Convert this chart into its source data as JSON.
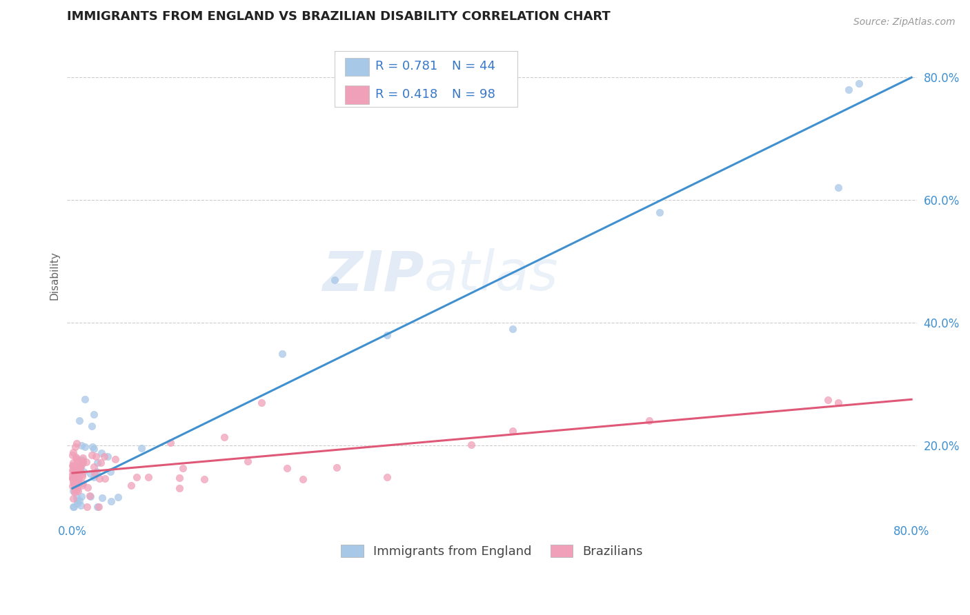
{
  "title": "IMMIGRANTS FROM ENGLAND VS BRAZILIAN DISABILITY CORRELATION CHART",
  "source": "Source: ZipAtlas.com",
  "ylabel": "Disability",
  "watermark_zip": "ZIP",
  "watermark_atlas": "atlas",
  "legend_blue_R": "R = 0.781",
  "legend_blue_N": "N = 44",
  "legend_pink_R": "R = 0.418",
  "legend_pink_N": "N = 98",
  "legend_labels": [
    "Immigrants from England",
    "Brazilians"
  ],
  "blue_scatter_color": "#a8c8e8",
  "pink_scatter_color": "#f0a0b8",
  "blue_line_color": "#4090d0",
  "pink_line_color": "#e05878",
  "title_color": "#222222",
  "legend_text_color": "#3878c8",
  "axis_tick_color": "#4090d0",
  "grid_color": "#cccccc",
  "background_color": "#ffffff",
  "xlim": [
    -0.005,
    0.805
  ],
  "ylim": [
    0.08,
    0.875
  ],
  "ytick_vals": [
    0.2,
    0.4,
    0.6,
    0.8
  ],
  "ytick_labels": [
    "20.0%",
    "40.0%",
    "60.0%",
    "80.0%"
  ],
  "blue_line_x": [
    0.0,
    0.8
  ],
  "blue_line_y": [
    0.13,
    0.8
  ],
  "pink_line_x": [
    0.0,
    0.8
  ],
  "pink_line_y": [
    0.155,
    0.275
  ]
}
